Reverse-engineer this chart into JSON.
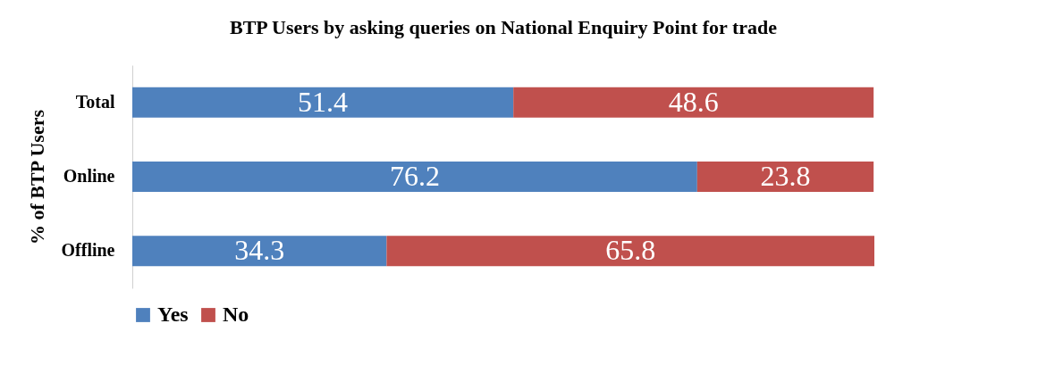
{
  "chart_data": {
    "type": "bar",
    "orientation": "horizontal",
    "stacked": true,
    "title": "BTP Users by asking queries on National Enquiry Point for trade",
    "ylabel": "% of BTP Users",
    "categories": [
      "Total",
      "Online",
      "Offline"
    ],
    "series": [
      {
        "name": "Yes",
        "color": "#4f81bd",
        "values": [
          51.4,
          76.2,
          34.3
        ]
      },
      {
        "name": "No",
        "color": "#c0504d",
        "values": [
          48.6,
          23.8,
          65.8
        ]
      }
    ],
    "xlim": [
      0,
      100.1
    ],
    "tick_labels": "y",
    "data_labels": true,
    "legend": "bottom"
  }
}
